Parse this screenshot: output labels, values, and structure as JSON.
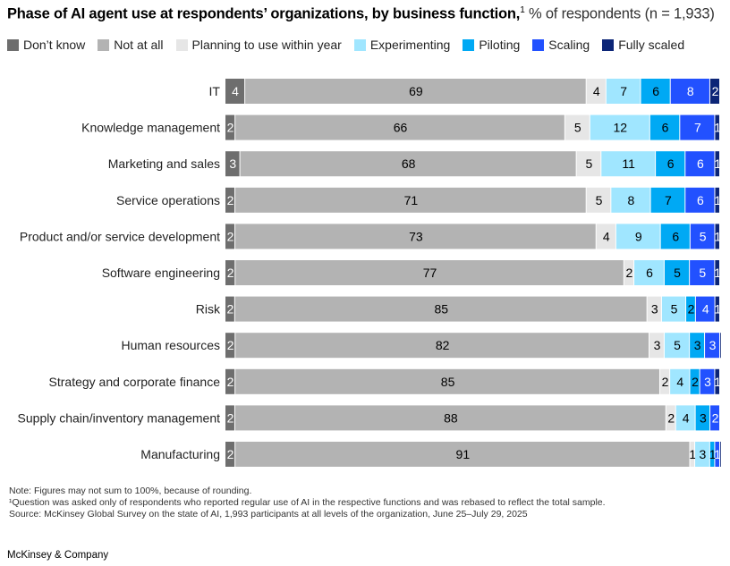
{
  "chart_data": {
    "type": "bar",
    "orientation": "horizontal",
    "stacked": true,
    "title": "Phase of AI agent use at respondents’ organizations, by business function,",
    "title_footnote": "1",
    "subtitle": "% of respondents (n = 1,933)",
    "legend_placement": "top-left",
    "grid": false,
    "categories": [
      "IT",
      "Knowledge management",
      "Marketing and sales",
      "Service operations",
      "Product and/or service development",
      "Software engineering",
      "Risk",
      "Human resources",
      "Strategy and corporate finance",
      "Supply chain/inventory management",
      "Manufacturing"
    ],
    "series": [
      {
        "name": "Don’t know",
        "color": "#6e6e6e",
        "label_color": "#ffffff",
        "values": [
          4,
          2,
          3,
          2,
          2,
          2,
          2,
          2,
          2,
          2,
          2
        ]
      },
      {
        "name": "Not at all",
        "color": "#b3b3b3",
        "label_color": "#000000",
        "values": [
          69,
          66,
          68,
          71,
          73,
          77,
          85,
          82,
          85,
          88,
          91
        ]
      },
      {
        "name": "Planning to use within year",
        "color": "#e6e6e6",
        "label_color": "#000000",
        "values": [
          4,
          5,
          5,
          5,
          4,
          2,
          3,
          3,
          2,
          2,
          1
        ]
      },
      {
        "name": "Experimenting",
        "color": "#a0e6ff",
        "label_color": "#000000",
        "values": [
          7,
          12,
          11,
          8,
          9,
          6,
          5,
          5,
          4,
          4,
          3
        ]
      },
      {
        "name": "Piloting",
        "color": "#00a9f4",
        "label_color": "#000000",
        "values": [
          6,
          6,
          6,
          7,
          6,
          5,
          2,
          3,
          2,
          3,
          1
        ]
      },
      {
        "name": "Scaling",
        "color": "#2251ff",
        "label_color": "#ffffff",
        "values": [
          8,
          7,
          6,
          6,
          5,
          5,
          4,
          3,
          3,
          2,
          1
        ]
      },
      {
        "name": "Fully scaled",
        "color": "#0c2577",
        "label_color": "#ffffff",
        "values": [
          2,
          1,
          1,
          1,
          1,
          1,
          1,
          null,
          1,
          null,
          null
        ]
      }
    ],
    "xlim": [
      0,
      100
    ]
  },
  "notes": {
    "note": "Note: Figures may not sum to 100%, because of rounding.",
    "footnote1": "¹Question was asked only of respondents who reported regular use of AI in the respective functions and was rebased to reflect the total sample.",
    "source": "Source: McKinsey Global Survey on the state of AI, 1,993 participants at all levels of the organization, June 25–July 29, 2025"
  },
  "brand": "McKinsey & Company"
}
